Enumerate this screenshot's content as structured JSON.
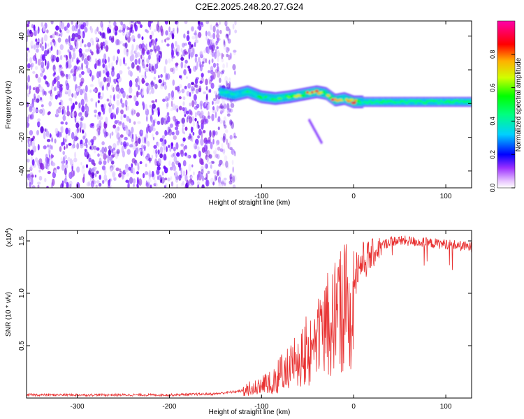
{
  "title": "C2E2.2025.248.20.27.G24",
  "chart_data": [
    {
      "type": "heatmap",
      "xlabel": "Height of straight line (km)",
      "ylabel": "Frequency (Hz)",
      "xlim": [
        -355,
        128
      ],
      "ylim": [
        -50,
        49
      ],
      "xticks": [
        -300,
        -200,
        -100,
        0,
        100
      ],
      "yticks": [
        -40,
        -20,
        0,
        20,
        40
      ],
      "colorbar": {
        "label": "Normalized spectral amplitude",
        "range": [
          0,
          1
        ],
        "ticks": [
          0.0,
          0.2,
          0.4,
          0.6,
          0.8
        ],
        "tick_labels": [
          "0.0",
          "0.2",
          "0.4",
          "0.6",
          "0.8"
        ]
      },
      "features": {
        "noise_region_km": [
          -355,
          -140
        ],
        "signal_track": {
          "x": [
            -145,
            -130,
            -115,
            -100,
            -85,
            -70,
            -60,
            -50,
            -40,
            -30,
            -20,
            -10,
            0,
            10,
            40,
            80,
            128
          ],
          "y": [
            7,
            5,
            7,
            4,
            3,
            4,
            5,
            6,
            7,
            6,
            2,
            3,
            1,
            1,
            1,
            1,
            1
          ],
          "amplitude": [
            0.45,
            0.35,
            0.5,
            0.45,
            0.5,
            0.55,
            0.6,
            0.7,
            0.8,
            0.65,
            0.9,
            0.5,
            1.0,
            0.45,
            0.4,
            0.4,
            0.45
          ]
        },
        "secondary_track": {
          "x": [
            -48,
            -35
          ],
          "y": [
            -10,
            -23
          ]
        }
      }
    },
    {
      "type": "line",
      "xlabel": "Height of straight line (km)",
      "ylabel": "SNR (10 * v/v)",
      "y_multiplier": "(x10",
      "y_multiplier_exp": "4",
      "xlim": [
        -355,
        128
      ],
      "ylim": [
        0,
        1.6
      ],
      "xticks": [
        -300,
        -200,
        -100,
        0,
        100
      ],
      "yticks": [
        0.5,
        1.0,
        1.5
      ],
      "ytick_labels": [
        "0.5",
        "1.0",
        "1.5"
      ],
      "series": [
        {
          "name": "SNR",
          "color": "#e83030",
          "x": [
            -355,
            -300,
            -250,
            -200,
            -150,
            -120,
            -100,
            -90,
            -80,
            -70,
            -60,
            -50,
            -40,
            -30,
            -20,
            -10,
            0,
            10,
            20,
            30,
            40,
            60,
            80,
            100,
            128
          ],
          "y": [
            0.03,
            0.03,
            0.03,
            0.03,
            0.04,
            0.07,
            0.14,
            0.18,
            0.23,
            0.32,
            0.42,
            0.55,
            0.7,
            0.86,
            0.99,
            1.1,
            1.2,
            1.3,
            1.37,
            1.45,
            1.5,
            1.5,
            1.48,
            1.47,
            1.44
          ]
        }
      ]
    }
  ]
}
